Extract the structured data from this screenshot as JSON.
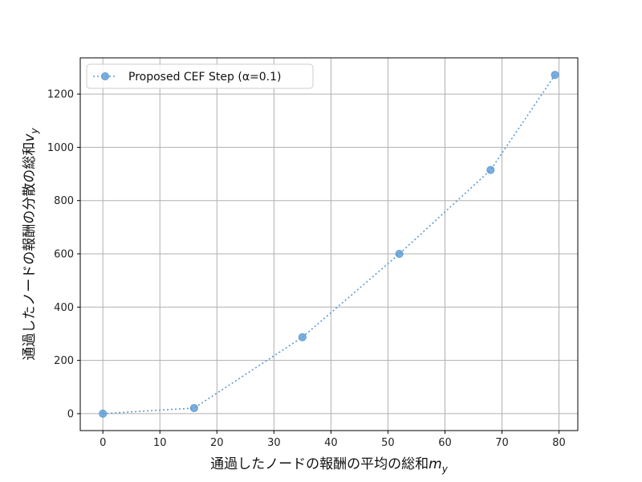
{
  "chart_data": {
    "type": "line",
    "title": "",
    "xlabel": "通過したノードの報酬の平均の総和",
    "xlabel_sub": "m",
    "xlabel_subscript": "y",
    "ylabel": "通過したノードの報酬の分散の総和",
    "ylabel_sub": "v",
    "ylabel_subscript": "y",
    "xlim": [
      -3.97,
      83.3
    ],
    "ylim": [
      -63.6,
      1336
    ],
    "xticks": [
      0,
      10,
      20,
      30,
      40,
      50,
      60,
      70,
      80
    ],
    "yticks": [
      0,
      200,
      400,
      600,
      800,
      1000,
      1200
    ],
    "grid": true,
    "legend_position": "top-left",
    "series": [
      {
        "name": "Proposed CEF Step (α=0.1)",
        "color": "#5b9bd5",
        "line_style": "dotted",
        "marker": "circle",
        "x": [
          0,
          16,
          35,
          52,
          68,
          79.3
        ],
        "y": [
          0,
          21,
          287,
          600,
          915,
          1272
        ]
      }
    ]
  }
}
